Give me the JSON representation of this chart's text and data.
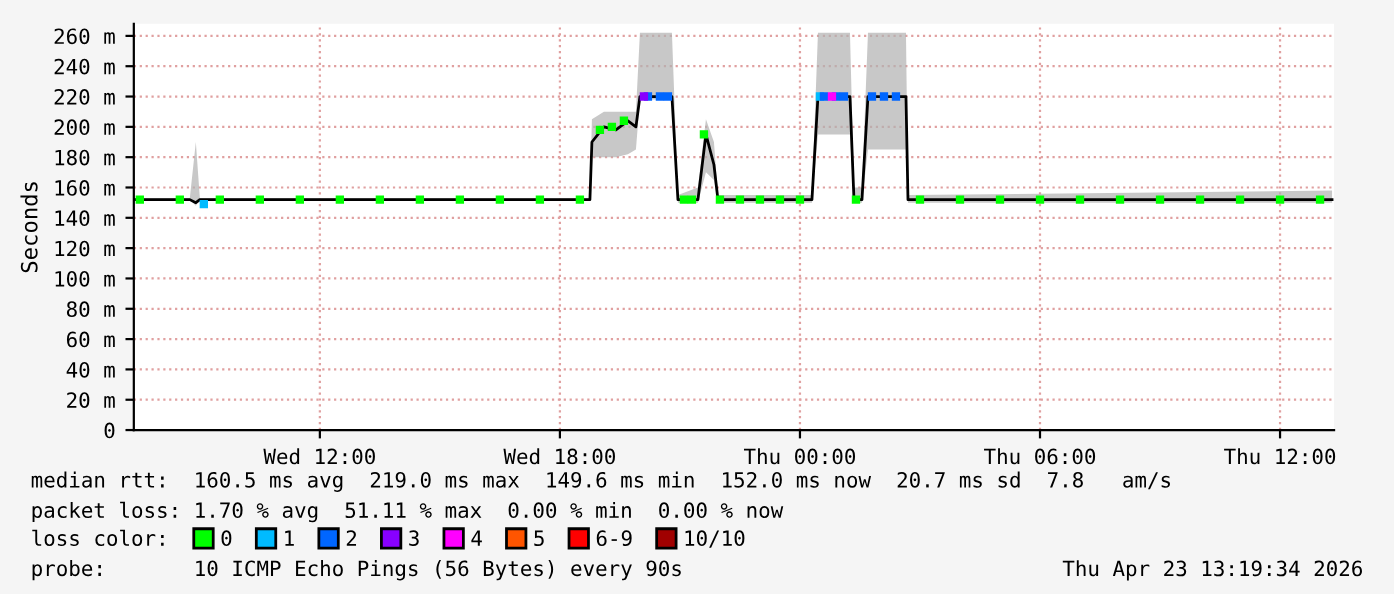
{
  "chart_data": {
    "type": "line",
    "ylabel": "Seconds",
    "xlim": [
      "2026-04-22T07:21",
      "2026-04-23T13:21"
    ],
    "xticks": [
      {
        "value": "2026-04-22T12:00",
        "label": "Wed 12:00"
      },
      {
        "value": "2026-04-22T18:00",
        "label": "Wed 18:00"
      },
      {
        "value": "2026-04-23T00:00",
        "label": "Thu 00:00"
      },
      {
        "value": "2026-04-23T06:00",
        "label": "Thu 06:00"
      },
      {
        "value": "2026-04-23T12:00",
        "label": "Thu 12:00"
      }
    ],
    "ylim": [
      0,
      268
    ],
    "yticks": [
      {
        "value": 0,
        "label": "0"
      },
      {
        "value": 20,
        "label": "20 m"
      },
      {
        "value": 40,
        "label": "40 m"
      },
      {
        "value": 60,
        "label": "60 m"
      },
      {
        "value": 80,
        "label": "80 m"
      },
      {
        "value": 100,
        "label": "100 m"
      },
      {
        "value": 120,
        "label": "120 m"
      },
      {
        "value": 140,
        "label": "140 m"
      },
      {
        "value": 160,
        "label": "160 m"
      },
      {
        "value": 180,
        "label": "180 m"
      },
      {
        "value": 200,
        "label": "200 m"
      },
      {
        "value": 220,
        "label": "220 m"
      },
      {
        "value": 240,
        "label": "240 m"
      },
      {
        "value": 260,
        "label": "260 m"
      }
    ],
    "grid": true,
    "legend": "bottom",
    "legend_title": "loss color:",
    "line_style": "solid",
    "series": [
      {
        "color": "#000000",
        "x": [
          "2026-04-22T07:21",
          "2026-04-22T08:45",
          "2026-04-22T08:54",
          "2026-04-22T09:00",
          "2026-04-22T18:45",
          "2026-04-22T18:48",
          "2026-04-22T19:06",
          "2026-04-22T19:24",
          "2026-04-22T19:42",
          "2026-04-22T19:54",
          "2026-04-22T20:00",
          "2026-04-22T20:48",
          "2026-04-22T20:57",
          "2026-04-22T21:27",
          "2026-04-22T21:39",
          "2026-04-22T21:51",
          "2026-04-22T21:57",
          "2026-04-23T00:18",
          "2026-04-23T00:27",
          "2026-04-23T01:15",
          "2026-04-23T01:21",
          "2026-04-23T01:33",
          "2026-04-23T01:42",
          "2026-04-23T02:39",
          "2026-04-23T02:42",
          "2026-04-23T13:18"
        ],
        "values": [
          152,
          152,
          150,
          152,
          152,
          190,
          200,
          198,
          204,
          200,
          220,
          220,
          152,
          152,
          195,
          175,
          152,
          152,
          220,
          220,
          152,
          152,
          220,
          220,
          152,
          152
        ],
        "lower": [
          152,
          152,
          148,
          152,
          152,
          180,
          180,
          180,
          182,
          185,
          218,
          218,
          150,
          150,
          170,
          165,
          150,
          150,
          195,
          195,
          150,
          150,
          185,
          185,
          150,
          150
        ],
        "upper": [
          153,
          153,
          190,
          153,
          153,
          205,
          210,
          210,
          210,
          210,
          262,
          262,
          155,
          160,
          205,
          190,
          155,
          155,
          262,
          262,
          160,
          160,
          262,
          262,
          155,
          158
        ]
      },
      {
        "type": "scatter",
        "name": "0",
        "marker": "square",
        "color": "#00ff00",
        "x": [
          "2026-04-22T07:30",
          "2026-04-22T08:30",
          "2026-04-22T09:30",
          "2026-04-22T10:30",
          "2026-04-22T11:30",
          "2026-04-22T12:30",
          "2026-04-22T13:30",
          "2026-04-22T14:30",
          "2026-04-22T15:30",
          "2026-04-22T16:30",
          "2026-04-22T17:30",
          "2026-04-22T18:30",
          "2026-04-22T19:00",
          "2026-04-22T19:18",
          "2026-04-22T19:36",
          "2026-04-22T21:06",
          "2026-04-22T21:18",
          "2026-04-22T21:36",
          "2026-04-22T22:00",
          "2026-04-22T22:30",
          "2026-04-22T23:00",
          "2026-04-22T23:30",
          "2026-04-23T00:00",
          "2026-04-23T01:24",
          "2026-04-23T03:00",
          "2026-04-23T04:00",
          "2026-04-23T05:00",
          "2026-04-23T06:00",
          "2026-04-23T07:00",
          "2026-04-23T08:00",
          "2026-04-23T09:00",
          "2026-04-23T10:00",
          "2026-04-23T11:00",
          "2026-04-23T12:00",
          "2026-04-23T13:00"
        ],
        "values": [
          152,
          152,
          152,
          152,
          152,
          152,
          152,
          152,
          152,
          152,
          152,
          152,
          198,
          200,
          204,
          152,
          152,
          195,
          152,
          152,
          152,
          152,
          152,
          152,
          152,
          152,
          152,
          152,
          152,
          152,
          152,
          152,
          152,
          152,
          152
        ]
      },
      {
        "type": "scatter",
        "name": "1",
        "marker": "square",
        "color": "#00bbff",
        "x": [
          "2026-04-22T09:06",
          "2026-04-23T00:30"
        ],
        "values": [
          149,
          220
        ]
      },
      {
        "type": "scatter",
        "name": "2",
        "marker": "square",
        "color": "#0066ff",
        "x": [
          "2026-04-22T20:12",
          "2026-04-22T20:30",
          "2026-04-22T20:42",
          "2026-04-23T00:36",
          "2026-04-23T00:54",
          "2026-04-23T01:06",
          "2026-04-23T01:48",
          "2026-04-23T02:06",
          "2026-04-23T02:24"
        ],
        "values": [
          220,
          220,
          220,
          220,
          220,
          220,
          220,
          220,
          220
        ]
      },
      {
        "type": "scatter",
        "name": "3",
        "marker": "square",
        "color": "#8800ff",
        "x": [
          "2026-04-22T20:06"
        ],
        "values": [
          220
        ]
      },
      {
        "type": "scatter",
        "name": "4",
        "marker": "square",
        "color": "#ff00ff",
        "x": [
          "2026-04-23T00:48"
        ],
        "values": [
          220
        ]
      },
      {
        "type": "scatter",
        "name": "5",
        "marker": "square",
        "color": "#ff5500"
      },
      {
        "type": "scatter",
        "name": "6-9",
        "marker": "square",
        "color": "#ff0000"
      },
      {
        "type": "scatter",
        "name": "10/10",
        "marker": "square",
        "color": "#a00000"
      }
    ],
    "annotations": [
      "median rtt:  160.5 ms avg  219.0 ms max  149.6 ms min  152.0 ms now  20.7 ms sd  7.8   am/s",
      "packet loss: 1.70 % avg  51.11 % max  0.00 % min  0.00 % now",
      "probe:       10 ICMP Echo Pings (56 Bytes) every 90s",
      "Thu Apr 23 13:19:34 2026"
    ]
  }
}
